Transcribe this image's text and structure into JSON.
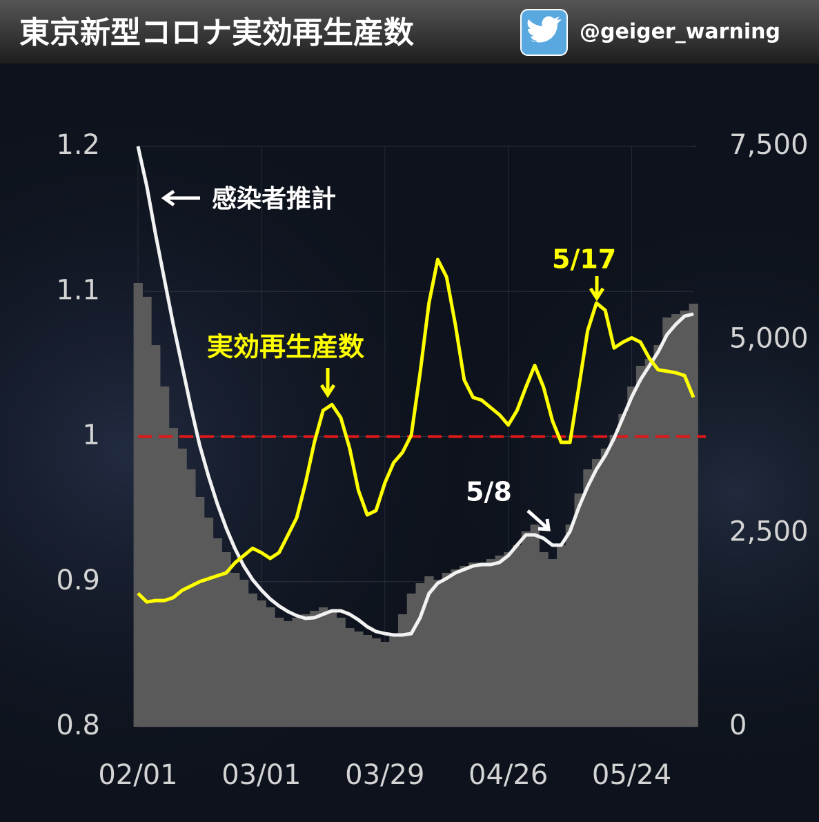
{
  "chart_data": {
    "type": "line",
    "title": "東京新型コロナ実効再生産数",
    "account": "@geiger_warning",
    "x": [
      "02/01",
      "02/03",
      "02/05",
      "02/07",
      "02/09",
      "02/11",
      "02/13",
      "02/15",
      "02/17",
      "02/19",
      "02/21",
      "02/23",
      "02/25",
      "02/27",
      "03/01",
      "03/03",
      "03/05",
      "03/07",
      "03/09",
      "03/11",
      "03/13",
      "03/15",
      "03/17",
      "03/19",
      "03/21",
      "03/23",
      "03/25",
      "03/27",
      "03/29",
      "03/31",
      "04/02",
      "04/04",
      "04/06",
      "04/08",
      "04/10",
      "04/12",
      "04/14",
      "04/16",
      "04/18",
      "04/20",
      "04/22",
      "04/24",
      "04/26",
      "04/28",
      "04/30",
      "05/02",
      "05/04",
      "05/06",
      "05/08",
      "05/10",
      "05/12",
      "05/14",
      "05/16",
      "05/18",
      "05/20",
      "05/22",
      "05/24",
      "05/26",
      "05/28",
      "05/30",
      "06/01",
      "06/03",
      "06/05",
      "06/07"
    ],
    "xticks": [
      "02/01",
      "03/01",
      "03/29",
      "04/26",
      "05/24"
    ],
    "ylim": [
      0.8,
      1.2
    ],
    "yticks": [
      0.8,
      0.9,
      1,
      1.1,
      1.2
    ],
    "y2lim": [
      0,
      7500
    ],
    "y2ticks": [
      0,
      {
        "value": 2500,
        "label": "2,500"
      },
      {
        "value": 5000,
        "label": "5,000"
      },
      {
        "value": 7500,
        "label": "7,500"
      }
    ],
    "grid": true,
    "reference_line": {
      "value": 1,
      "color": "#e01818"
    },
    "series": [
      {
        "type": "bar",
        "axis": "y2",
        "color": "#5a5a5a",
        "values": [
          5734,
          5556,
          4932,
          4397,
          3862,
          3594,
          3326,
          2970,
          2702,
          2435,
          2256,
          1989,
          1900,
          1721,
          1632,
          1543,
          1409,
          1365,
          1409,
          1454,
          1498,
          1543,
          1498,
          1409,
          1275,
          1231,
          1186,
          1142,
          1097,
          1186,
          1454,
          1721,
          1855,
          1944,
          1900,
          1989,
          2033,
          2078,
          2123,
          2123,
          2167,
          2212,
          2256,
          2346,
          2524,
          2613,
          2256,
          2167,
          2346,
          2613,
          3014,
          3326,
          3460,
          3594,
          3772,
          4040,
          4397,
          4664,
          4753,
          4932,
          5288,
          5333,
          5377,
          5467
        ]
      },
      {
        "name": "感染者推計",
        "type": "line",
        "axis": "y2",
        "color": "#f2f2f2",
        "values": [
          7500,
          6983,
          6358,
          5779,
          5199,
          4664,
          4129,
          3638,
          3237,
          2880,
          2568,
          2301,
          2078,
          1900,
          1766,
          1650,
          1561,
          1489,
          1436,
          1400,
          1409,
          1454,
          1498,
          1498,
          1454,
          1382,
          1293,
          1231,
          1204,
          1186,
          1186,
          1204,
          1409,
          1721,
          1855,
          1917,
          1989,
          2033,
          2078,
          2096,
          2096,
          2123,
          2212,
          2346,
          2479,
          2479,
          2435,
          2346,
          2346,
          2524,
          2836,
          3103,
          3326,
          3505,
          3728,
          3995,
          4263,
          4486,
          4664,
          4843,
          5066,
          5199,
          5306,
          5333
        ]
      },
      {
        "name": "実効再生産数",
        "type": "line",
        "axis": "y",
        "color": "#ffff00",
        "values": [
          0.892,
          0.886,
          0.887,
          0.887,
          0.889,
          0.894,
          0.897,
          0.9,
          0.902,
          0.904,
          0.906,
          0.913,
          0.918,
          0.923,
          0.92,
          0.916,
          0.92,
          0.932,
          0.944,
          0.968,
          0.996,
          1.018,
          1.022,
          1.013,
          0.992,
          0.963,
          0.946,
          0.949,
          0.968,
          0.982,
          0.989,
          1.001,
          1.044,
          1.092,
          1.122,
          1.11,
          1.077,
          1.039,
          1.027,
          1.025,
          1.02,
          1.015,
          1.008,
          1.018,
          1.034,
          1.049,
          1.034,
          1.011,
          0.996,
          0.996,
          1.034,
          1.073,
          1.092,
          1.087,
          1.061,
          1.065,
          1.068,
          1.065,
          1.054,
          1.046,
          1.045,
          1.044,
          1.042,
          1.027
        ]
      }
    ],
    "annotations": [
      "5/17",
      "5/8"
    ]
  }
}
